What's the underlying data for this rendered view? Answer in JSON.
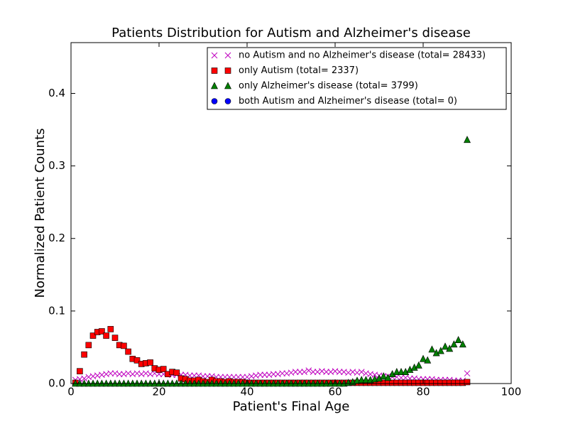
{
  "chart_data": {
    "type": "scatter",
    "title": "Patients Distribution for Autism and Alzheimer's disease",
    "xlabel": "Patient's Final Age",
    "ylabel": "Normalized Patient Counts",
    "xlim": [
      0,
      100
    ],
    "xticks": [
      0,
      20,
      40,
      60,
      80,
      100
    ],
    "ylim": [
      0,
      0.47
    ],
    "yticks": [
      {
        "value": 0,
        "label": "0.0"
      },
      0.1,
      0.2,
      0.3,
      0.4
    ],
    "legend": "upper right",
    "x": [
      1,
      2,
      3,
      4,
      5,
      6,
      7,
      8,
      9,
      10,
      11,
      12,
      13,
      14,
      15,
      16,
      17,
      18,
      19,
      20,
      21,
      22,
      23,
      24,
      25,
      26,
      27,
      28,
      29,
      30,
      31,
      32,
      33,
      34,
      35,
      36,
      37,
      38,
      39,
      40,
      41,
      42,
      43,
      44,
      45,
      46,
      47,
      48,
      49,
      50,
      51,
      52,
      53,
      54,
      55,
      56,
      57,
      58,
      59,
      60,
      61,
      62,
      63,
      64,
      65,
      66,
      67,
      68,
      69,
      70,
      71,
      72,
      73,
      74,
      75,
      76,
      77,
      78,
      79,
      80,
      81,
      82,
      83,
      84,
      85,
      86,
      87,
      88,
      89,
      90
    ],
    "series": [
      {
        "name": "no Autism and no Alzheimer's disease (total= 28433)",
        "color": "#bf00bf",
        "marker": "x",
        "values": [
          0.005,
          0.006,
          0.007,
          0.009,
          0.01,
          0.011,
          0.012,
          0.013,
          0.014,
          0.014,
          0.013,
          0.013,
          0.014,
          0.013,
          0.014,
          0.013,
          0.014,
          0.013,
          0.014,
          0.013,
          0.013,
          0.013,
          0.012,
          0.012,
          0.012,
          0.012,
          0.011,
          0.011,
          0.011,
          0.01,
          0.01,
          0.01,
          0.009,
          0.009,
          0.009,
          0.009,
          0.009,
          0.009,
          0.009,
          0.009,
          0.01,
          0.011,
          0.012,
          0.012,
          0.012,
          0.013,
          0.013,
          0.014,
          0.014,
          0.015,
          0.016,
          0.016,
          0.016,
          0.018,
          0.016,
          0.016,
          0.017,
          0.016,
          0.016,
          0.017,
          0.016,
          0.016,
          0.015,
          0.016,
          0.015,
          0.016,
          0.014,
          0.013,
          0.012,
          0.011,
          0.01,
          0.01,
          0.009,
          0.009,
          0.008,
          0.008,
          0.007,
          0.007,
          0.006,
          0.006,
          0.006,
          0.006,
          0.005,
          0.005,
          0.005,
          0.005,
          0.004,
          0.004,
          0.004,
          0.014
        ]
      },
      {
        "name": "only Autism (total= 2337)",
        "color": "#ff0000",
        "marker": "s",
        "values": [
          0.001,
          0.017,
          0.04,
          0.053,
          0.066,
          0.071,
          0.072,
          0.066,
          0.075,
          0.063,
          0.053,
          0.052,
          0.044,
          0.034,
          0.032,
          0.027,
          0.028,
          0.029,
          0.021,
          0.019,
          0.02,
          0.013,
          0.016,
          0.015,
          0.007,
          0.006,
          0.004,
          0.004,
          0.005,
          0.003,
          0.002,
          0.005,
          0.003,
          0.003,
          0.002,
          0.003,
          0.002,
          0.002,
          0.002,
          0.001,
          0.001,
          0.001,
          0.001,
          0.001,
          0.001,
          0.001,
          0.001,
          0.001,
          0.001,
          0.001,
          0.001,
          0.001,
          0.001,
          0.001,
          0.001,
          0.001,
          0.001,
          0.001,
          0.001,
          0.001,
          0.001,
          0.001,
          0.001,
          0.001,
          0.001,
          0.001,
          0.001,
          0.001,
          0.001,
          0.001,
          0.001,
          0.001,
          0.001,
          0.001,
          0.001,
          0.001,
          0.001,
          0.001,
          0.001,
          0.001,
          0.001,
          0.001,
          0.001,
          0.001,
          0.001,
          0.001,
          0.001,
          0.001,
          0.001,
          0.002
        ]
      },
      {
        "name": "only Alzheimer's disease (total= 3799)",
        "color": "#008000",
        "marker": "^",
        "values": [
          0,
          0,
          0,
          0,
          0,
          0,
          0,
          0,
          0,
          0,
          0,
          0,
          0,
          0,
          0,
          0,
          0,
          0,
          0,
          0,
          0,
          0,
          0,
          0,
          0,
          0,
          0,
          0,
          0,
          0,
          0,
          0,
          0,
          0,
          0,
          0,
          0,
          0,
          0,
          0,
          0,
          0,
          0,
          0,
          0,
          0,
          0,
          0,
          0,
          0,
          0,
          0,
          0,
          0,
          0,
          0,
          0,
          0,
          0,
          0,
          0,
          0,
          0.001,
          0.002,
          0.004,
          0.005,
          0.005,
          0.005,
          0.006,
          0.007,
          0.01,
          0.008,
          0.013,
          0.016,
          0.016,
          0.016,
          0.019,
          0.022,
          0.025,
          0.034,
          0.032,
          0.047,
          0.042,
          0.045,
          0.051,
          0.048,
          0.054,
          0.06,
          0.054,
          0.336
        ]
      },
      {
        "name": "both Autism and Alzheimer's disease (total= 0)",
        "color": "#0000ff",
        "marker": "o",
        "values": [
          null,
          null,
          null,
          null,
          null,
          null,
          null,
          null,
          null,
          null,
          null,
          null,
          null,
          null,
          null,
          null,
          null,
          null,
          null,
          null,
          null,
          null,
          null,
          null,
          null,
          null,
          null,
          null,
          null,
          null,
          null,
          null,
          null,
          null,
          null,
          null,
          null,
          null,
          null,
          null,
          null,
          null,
          null,
          null,
          null,
          null,
          null,
          null,
          null,
          null,
          null,
          null,
          null,
          null,
          null,
          null,
          null,
          null,
          null,
          null,
          null,
          null,
          null,
          null,
          null,
          null,
          null,
          null,
          null,
          null,
          null,
          null,
          null,
          null,
          null,
          null,
          null,
          null,
          null,
          null,
          null,
          null,
          null,
          null,
          null,
          null,
          null,
          null,
          null,
          null
        ]
      }
    ]
  }
}
